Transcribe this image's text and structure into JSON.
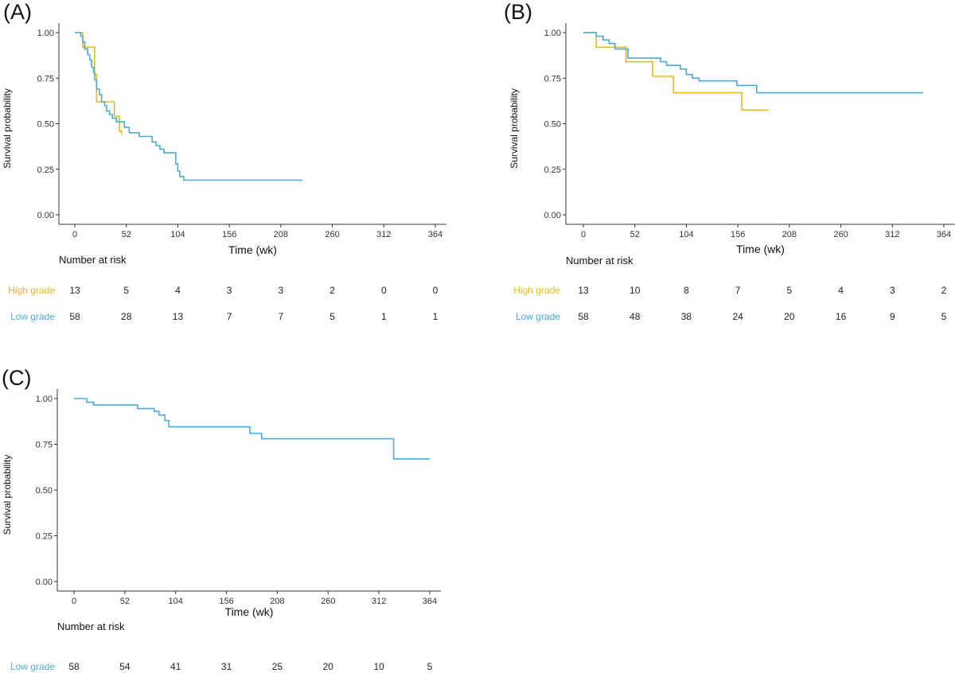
{
  "chart_data": [
    {
      "type": "line",
      "subtype": "kaplan-meier",
      "panel_label": "(A)",
      "xlabel": "Time (wk)",
      "ylabel": "Survival probability",
      "x_ticks": [
        "0",
        "52",
        "104",
        "156",
        "208",
        "260",
        "312",
        "364"
      ],
      "y_ticks": [
        "0.00",
        "0.25",
        "0.50",
        "0.75",
        "1.00"
      ],
      "xlim": [
        0,
        364
      ],
      "ylim": [
        0,
        1
      ],
      "series": [
        {
          "name": "High grade",
          "color": "#E8B820",
          "points": [
            [
              0,
              1.0
            ],
            [
              8,
              1.0
            ],
            [
              8,
              0.92
            ],
            [
              20,
              0.92
            ],
            [
              20,
              0.77
            ],
            [
              22,
              0.77
            ],
            [
              22,
              0.62
            ],
            [
              40,
              0.62
            ],
            [
              40,
              0.54
            ],
            [
              45,
              0.54
            ],
            [
              45,
              0.46
            ],
            [
              47,
              0.46
            ],
            [
              47,
              0.44
            ]
          ]
        },
        {
          "name": "Low grade",
          "color": "#4BAAD6",
          "points": [
            [
              0,
              1.0
            ],
            [
              6,
              1.0
            ],
            [
              6,
              0.98
            ],
            [
              8,
              0.98
            ],
            [
              8,
              0.95
            ],
            [
              10,
              0.95
            ],
            [
              10,
              0.91
            ],
            [
              13,
              0.91
            ],
            [
              13,
              0.88
            ],
            [
              15,
              0.88
            ],
            [
              15,
              0.85
            ],
            [
              17,
              0.85
            ],
            [
              17,
              0.81
            ],
            [
              19,
              0.81
            ],
            [
              19,
              0.78
            ],
            [
              20,
              0.78
            ],
            [
              20,
              0.74
            ],
            [
              22,
              0.74
            ],
            [
              22,
              0.69
            ],
            [
              25,
              0.69
            ],
            [
              25,
              0.66
            ],
            [
              27,
              0.66
            ],
            [
              27,
              0.62
            ],
            [
              30,
              0.62
            ],
            [
              30,
              0.6
            ],
            [
              32,
              0.6
            ],
            [
              32,
              0.57
            ],
            [
              35,
              0.57
            ],
            [
              35,
              0.55
            ],
            [
              38,
              0.55
            ],
            [
              38,
              0.53
            ],
            [
              42,
              0.53
            ],
            [
              42,
              0.51
            ],
            [
              50,
              0.51
            ],
            [
              50,
              0.48
            ],
            [
              55,
              0.48
            ],
            [
              55,
              0.45
            ],
            [
              65,
              0.45
            ],
            [
              65,
              0.43
            ],
            [
              78,
              0.43
            ],
            [
              78,
              0.4
            ],
            [
              82,
              0.4
            ],
            [
              82,
              0.38
            ],
            [
              86,
              0.38
            ],
            [
              86,
              0.36
            ],
            [
              90,
              0.36
            ],
            [
              90,
              0.34
            ],
            [
              102,
              0.34
            ],
            [
              102,
              0.28
            ],
            [
              104,
              0.28
            ],
            [
              104,
              0.24
            ],
            [
              106,
              0.24
            ],
            [
              106,
              0.21
            ],
            [
              110,
              0.21
            ],
            [
              110,
              0.19
            ],
            [
              230,
              0.19
            ]
          ]
        }
      ],
      "risk_table": {
        "title": "Number at risk",
        "rows": [
          {
            "group": "High grade",
            "color": "#E8B820",
            "values": [
              "13",
              "5",
              "4",
              "3",
              "3",
              "2",
              "0",
              "0"
            ]
          },
          {
            "group": "Low grade",
            "color": "#4BAAD6",
            "values": [
              "58",
              "28",
              "13",
              "7",
              "7",
              "5",
              "1",
              "1"
            ]
          }
        ]
      }
    },
    {
      "type": "line",
      "subtype": "kaplan-meier",
      "panel_label": "(B)",
      "xlabel": "Time (wk)",
      "ylabel": "Survival probability",
      "x_ticks": [
        "0",
        "52",
        "104",
        "156",
        "208",
        "260",
        "312",
        "364"
      ],
      "y_ticks": [
        "0.00",
        "0.25",
        "0.50",
        "0.75",
        "1.00"
      ],
      "xlim": [
        0,
        364
      ],
      "ylim": [
        0,
        1
      ],
      "series": [
        {
          "name": "High grade",
          "color": "#E8B820",
          "points": [
            [
              0,
              1.0
            ],
            [
              13,
              1.0
            ],
            [
              13,
              0.92
            ],
            [
              43,
              0.92
            ],
            [
              43,
              0.84
            ],
            [
              70,
              0.84
            ],
            [
              70,
              0.76
            ],
            [
              91,
              0.76
            ],
            [
              91,
              0.67
            ],
            [
              160,
              0.67
            ],
            [
              160,
              0.575
            ],
            [
              187,
              0.575
            ]
          ]
        },
        {
          "name": "Low grade",
          "color": "#4BAAD6",
          "points": [
            [
              0,
              1.0
            ],
            [
              13,
              1.0
            ],
            [
              13,
              0.98
            ],
            [
              20,
              0.98
            ],
            [
              20,
              0.96
            ],
            [
              26,
              0.96
            ],
            [
              26,
              0.94
            ],
            [
              32,
              0.94
            ],
            [
              32,
              0.91
            ],
            [
              45,
              0.91
            ],
            [
              45,
              0.86
            ],
            [
              78,
              0.86
            ],
            [
              78,
              0.84
            ],
            [
              84,
              0.84
            ],
            [
              84,
              0.82
            ],
            [
              98,
              0.82
            ],
            [
              98,
              0.8
            ],
            [
              104,
              0.8
            ],
            [
              104,
              0.77
            ],
            [
              110,
              0.77
            ],
            [
              110,
              0.75
            ],
            [
              117,
              0.75
            ],
            [
              117,
              0.735
            ],
            [
              155,
              0.735
            ],
            [
              155,
              0.71
            ],
            [
              175,
              0.71
            ],
            [
              175,
              0.67
            ],
            [
              343,
              0.67
            ]
          ]
        }
      ],
      "risk_table": {
        "title": "Number at risk",
        "rows": [
          {
            "group": "High grade",
            "color": "#E8B820",
            "values": [
              "13",
              "10",
              "8",
              "7",
              "5",
              "4",
              "3",
              "2"
            ]
          },
          {
            "group": "Low grade",
            "color": "#4BAAD6",
            "values": [
              "58",
              "48",
              "38",
              "24",
              "20",
              "16",
              "9",
              "5"
            ]
          }
        ]
      }
    },
    {
      "type": "line",
      "subtype": "kaplan-meier",
      "panel_label": "(C)",
      "xlabel": "Time (wk)",
      "ylabel": "Survival probability",
      "x_ticks": [
        "0",
        "52",
        "104",
        "156",
        "208",
        "260",
        "312",
        "364"
      ],
      "y_ticks": [
        "0.00",
        "0.25",
        "0.50",
        "0.75",
        "1.00"
      ],
      "xlim": [
        0,
        364
      ],
      "ylim": [
        0,
        1
      ],
      "series": [
        {
          "name": "Low grade",
          "color": "#4BAAD6",
          "points": [
            [
              0,
              1.0
            ],
            [
              13,
              1.0
            ],
            [
              13,
              0.98
            ],
            [
              20,
              0.98
            ],
            [
              20,
              0.965
            ],
            [
              65,
              0.965
            ],
            [
              65,
              0.945
            ],
            [
              82,
              0.945
            ],
            [
              82,
              0.93
            ],
            [
              87,
              0.93
            ],
            [
              87,
              0.91
            ],
            [
              93,
              0.91
            ],
            [
              93,
              0.88
            ],
            [
              97,
              0.88
            ],
            [
              97,
              0.845
            ],
            [
              180,
              0.845
            ],
            [
              180,
              0.81
            ],
            [
              192,
              0.81
            ],
            [
              192,
              0.78
            ],
            [
              327,
              0.78
            ],
            [
              327,
              0.67
            ],
            [
              364,
              0.67
            ]
          ]
        }
      ],
      "risk_table": {
        "title": "Number at risk",
        "rows": [
          {
            "group": "Low grade",
            "color": "#4BAAD6",
            "values": [
              "58",
              "54",
              "41",
              "31",
              "25",
              "20",
              "10",
              "5"
            ]
          }
        ]
      }
    }
  ]
}
